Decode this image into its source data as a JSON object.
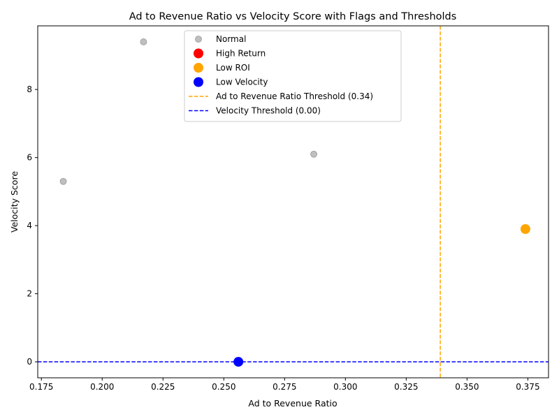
{
  "chart_data": {
    "type": "scatter",
    "title": "Ad to Revenue Ratio vs Velocity Score with Flags and Thresholds",
    "xlabel": "Ad to Revenue Ratio",
    "ylabel": "Velocity Score",
    "xlim": [
      0.1735,
      0.3835
    ],
    "ylim": [
      -0.47,
      9.87
    ],
    "xticks": [
      "0.175",
      "0.200",
      "0.225",
      "0.250",
      "0.275",
      "0.300",
      "0.325",
      "0.350",
      "0.375"
    ],
    "yticks": [
      "0",
      "2",
      "4",
      "6",
      "8"
    ],
    "grid": false,
    "legend_position": "top-center",
    "series": [
      {
        "name": "Normal",
        "color": "#a9a9a9",
        "size": "small",
        "points": [
          {
            "x": 0.184,
            "y": 5.3
          },
          {
            "x": 0.217,
            "y": 9.4
          },
          {
            "x": 0.287,
            "y": 6.1
          }
        ]
      },
      {
        "name": "High Return",
        "color": "#ff0000",
        "size": "large",
        "points": []
      },
      {
        "name": "Low ROI",
        "color": "#ffa500",
        "size": "large",
        "points": [
          {
            "x": 0.374,
            "y": 3.9
          }
        ]
      },
      {
        "name": "Low Velocity",
        "color": "#0000ff",
        "size": "large",
        "points": [
          {
            "x": 0.256,
            "y": 0.0
          }
        ]
      }
    ],
    "thresholds": [
      {
        "name": "Ad to Revenue Ratio Threshold (0.34)",
        "axis": "x",
        "value": 0.339,
        "color": "#ffa500"
      },
      {
        "name": "Velocity Threshold (0.00)",
        "axis": "y",
        "value": 0.0,
        "color": "#0000ff"
      }
    ]
  }
}
